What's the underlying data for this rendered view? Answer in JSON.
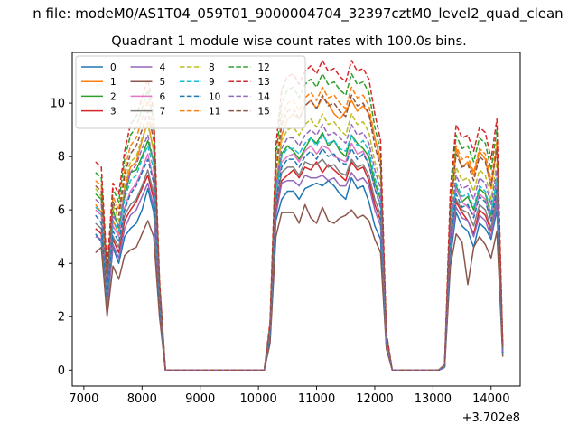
{
  "figure": {
    "suptitle": "n file: modeM0/AS1T04_059T01_9000004704_32397cztM0_level2_quad_clean",
    "title": "Quadrant 1 module wise count rates with 100.0s bins."
  },
  "chart_data": {
    "type": "line",
    "title": "Quadrant 1 module wise count rates with 100.0s bins.",
    "x_offset_label": "+3.702e8",
    "xlim": [
      6800,
      14500
    ],
    "ylim": [
      -0.6,
      11.9
    ],
    "xticks": [
      7000,
      8000,
      9000,
      10000,
      11000,
      12000,
      13000,
      14000
    ],
    "yticks": [
      0,
      2,
      4,
      6,
      8,
      10
    ],
    "grid": false,
    "legend": {
      "placement": "upper-left",
      "ncol": 4
    },
    "x": [
      7200,
      7300,
      7400,
      7500,
      7600,
      7700,
      7800,
      7900,
      8000,
      8100,
      8200,
      8300,
      8400,
      8500,
      8600,
      8700,
      8800,
      8900,
      9000,
      9100,
      9200,
      9300,
      9400,
      9500,
      9600,
      9700,
      9800,
      9900,
      10000,
      10100,
      10200,
      10300,
      10400,
      10500,
      10600,
      10700,
      10800,
      10900,
      11000,
      11100,
      11200,
      11300,
      11400,
      11500,
      11600,
      11700,
      11800,
      11900,
      12000,
      12100,
      12200,
      12300,
      12400,
      12500,
      12600,
      12700,
      12800,
      12900,
      13000,
      13100,
      13200,
      13300,
      13400,
      13500,
      13600,
      13700,
      13800,
      13900,
      14000,
      14100,
      14200
    ],
    "series": [
      {
        "name": "0",
        "color": "#1f77b4",
        "dash": false,
        "values": [
          5.1,
          4.8,
          2.4,
          4.6,
          4.0,
          5.0,
          5.3,
          5.5,
          6.0,
          6.8,
          5.9,
          2.4,
          0,
          0,
          0,
          0,
          0,
          0,
          0,
          0,
          0,
          0,
          0,
          0,
          0,
          0,
          0,
          0,
          0,
          0,
          1.2,
          5.6,
          6.4,
          6.7,
          6.7,
          6.4,
          6.8,
          6.9,
          7.0,
          6.9,
          7.1,
          6.9,
          6.6,
          6.4,
          7.2,
          6.8,
          6.9,
          6.3,
          5.4,
          4.9,
          0.9,
          0,
          0,
          0,
          0,
          0,
          0,
          0,
          0,
          0,
          0.1,
          4.2,
          5.9,
          5.4,
          5.2,
          4.6,
          5.5,
          5.3,
          4.9,
          6.0,
          0.6
        ]
      },
      {
        "name": "1",
        "color": "#ff7f0e",
        "dash": false,
        "values": [
          6.2,
          5.9,
          3.0,
          5.6,
          5.1,
          6.8,
          7.6,
          7.8,
          8.6,
          9.3,
          8.2,
          2.9,
          0,
          0,
          0,
          0,
          0,
          0,
          0,
          0,
          0,
          0,
          0,
          0,
          0,
          0,
          0,
          0,
          0,
          0,
          1.5,
          6.8,
          8.8,
          9.4,
          9.6,
          9.4,
          9.9,
          10.1,
          9.8,
          10.2,
          10.0,
          9.6,
          9.4,
          9.7,
          10.1,
          9.7,
          9.9,
          9.6,
          8.7,
          7.9,
          1.2,
          0,
          0,
          0,
          0,
          0,
          0,
          0,
          0,
          0,
          0.2,
          5.8,
          8.3,
          7.6,
          7.8,
          7.3,
          8.2,
          7.9,
          6.8,
          8.4,
          0.8
        ]
      },
      {
        "name": "2",
        "color": "#2ca02c",
        "dash": false,
        "values": [
          6.6,
          6.4,
          3.1,
          6.0,
          5.3,
          6.5,
          7.4,
          7.5,
          8.0,
          8.6,
          7.8,
          2.8,
          0,
          0,
          0,
          0,
          0,
          0,
          0,
          0,
          0,
          0,
          0,
          0,
          0,
          0,
          0,
          0,
          0,
          0,
          1.4,
          6.7,
          8.1,
          8.4,
          8.2,
          7.9,
          8.3,
          8.7,
          8.5,
          8.9,
          8.4,
          8.6,
          8.2,
          8.0,
          8.8,
          8.5,
          8.3,
          8.0,
          7.0,
          6.4,
          1.1,
          0,
          0,
          0,
          0,
          0,
          0,
          0,
          0,
          0,
          0.2,
          5.2,
          6.9,
          6.3,
          6.5,
          6.0,
          6.8,
          6.6,
          5.8,
          7.1,
          0.7
        ]
      },
      {
        "name": "3",
        "color": "#d62728",
        "dash": false,
        "values": [
          5.3,
          5.1,
          2.5,
          4.9,
          4.4,
          5.6,
          6.0,
          6.3,
          6.8,
          7.3,
          6.4,
          2.5,
          0,
          0,
          0,
          0,
          0,
          0,
          0,
          0,
          0,
          0,
          0,
          0,
          0,
          0,
          0,
          0,
          0,
          0,
          1.3,
          6.0,
          7.1,
          7.3,
          7.5,
          7.2,
          7.6,
          7.5,
          7.8,
          7.4,
          7.7,
          7.5,
          7.3,
          7.1,
          7.8,
          7.5,
          7.6,
          7.1,
          6.2,
          5.6,
          1.0,
          0,
          0,
          0,
          0,
          0,
          0,
          0,
          0,
          0,
          0.1,
          4.6,
          6.3,
          5.9,
          5.6,
          5.1,
          6.0,
          5.8,
          5.2,
          6.5,
          0.6
        ]
      },
      {
        "name": "4",
        "color": "#9467bd",
        "dash": false,
        "values": [
          5.0,
          4.9,
          2.2,
          4.7,
          4.2,
          5.3,
          5.8,
          6.0,
          6.5,
          7.0,
          6.1,
          2.4,
          0,
          0,
          0,
          0,
          0,
          0,
          0,
          0,
          0,
          0,
          0,
          0,
          0,
          0,
          0,
          0,
          0,
          0,
          1.2,
          5.8,
          7.0,
          7.1,
          7.1,
          6.9,
          7.3,
          7.2,
          7.2,
          7.3,
          7.1,
          7.2,
          6.9,
          6.9,
          7.4,
          7.1,
          7.2,
          6.9,
          6.0,
          5.4,
          1.0,
          0,
          0,
          0,
          0,
          0,
          0,
          0,
          0,
          0,
          0.1,
          4.5,
          6.1,
          5.7,
          5.6,
          5.0,
          5.8,
          5.6,
          5.0,
          6.3,
          0.6
        ]
      },
      {
        "name": "5",
        "color": "#8c564b",
        "dash": false,
        "values": [
          4.4,
          4.6,
          2.0,
          3.9,
          3.4,
          4.3,
          4.5,
          4.6,
          5.1,
          5.6,
          5.0,
          2.0,
          0,
          0,
          0,
          0,
          0,
          0,
          0,
          0,
          0,
          0,
          0,
          0,
          0,
          0,
          0,
          0,
          0,
          0,
          1.0,
          5.0,
          5.9,
          5.9,
          5.9,
          5.5,
          6.2,
          5.7,
          5.5,
          6.1,
          5.6,
          5.5,
          5.7,
          5.8,
          6.0,
          5.7,
          5.8,
          5.6,
          4.9,
          4.4,
          0.8,
          0,
          0,
          0,
          0,
          0,
          0,
          0,
          0,
          0,
          0.1,
          3.9,
          5.1,
          4.8,
          3.2,
          4.6,
          5.0,
          4.7,
          4.2,
          5.2,
          0.5
        ]
      },
      {
        "name": "6",
        "color": "#e377c2",
        "dash": false,
        "values": [
          6.0,
          5.8,
          2.9,
          5.4,
          5.0,
          6.1,
          6.7,
          7.0,
          7.5,
          8.1,
          7.1,
          2.7,
          0,
          0,
          0,
          0,
          0,
          0,
          0,
          0,
          0,
          0,
          0,
          0,
          0,
          0,
          0,
          0,
          0,
          0,
          1.4,
          6.5,
          7.8,
          8.0,
          8.1,
          7.8,
          8.2,
          8.4,
          8.1,
          8.4,
          8.3,
          8.0,
          7.9,
          7.8,
          8.5,
          8.1,
          8.2,
          7.7,
          6.8,
          6.2,
          1.1,
          0,
          0,
          0,
          0,
          0,
          0,
          0,
          0,
          0,
          0.2,
          5.0,
          6.8,
          6.3,
          6.1,
          5.8,
          6.6,
          6.4,
          5.6,
          6.9,
          0.7
        ]
      },
      {
        "name": "7",
        "color": "#7f7f7f",
        "dash": false,
        "values": [
          5.5,
          5.3,
          2.6,
          5.0,
          4.6,
          5.8,
          6.2,
          6.4,
          6.9,
          7.5,
          6.6,
          2.6,
          0,
          0,
          0,
          0,
          0,
          0,
          0,
          0,
          0,
          0,
          0,
          0,
          0,
          0,
          0,
          0,
          0,
          0,
          1.3,
          6.2,
          7.4,
          7.6,
          7.6,
          7.3,
          7.8,
          7.7,
          7.7,
          7.9,
          7.6,
          7.7,
          7.4,
          7.3,
          7.9,
          7.6,
          7.7,
          7.3,
          6.4,
          5.8,
          1.0,
          0,
          0,
          0,
          0,
          0,
          0,
          0,
          0,
          0,
          0.1,
          4.8,
          6.4,
          6.0,
          5.9,
          5.4,
          6.2,
          6.0,
          5.3,
          6.6,
          0.6
        ]
      },
      {
        "name": "8",
        "color": "#bcbd22",
        "dash": true,
        "values": [
          6.8,
          6.5,
          3.2,
          6.2,
          5.6,
          7.0,
          7.8,
          8.0,
          8.7,
          9.2,
          8.2,
          3.0,
          0,
          0,
          0,
          0,
          0,
          0,
          0,
          0,
          0,
          0,
          0,
          0,
          0,
          0,
          0,
          0,
          0,
          0,
          1.5,
          7.1,
          8.6,
          9.0,
          9.1,
          8.8,
          9.2,
          9.4,
          9.1,
          9.6,
          9.2,
          9.3,
          9.0,
          8.8,
          9.6,
          9.2,
          9.3,
          8.9,
          7.8,
          7.1,
          1.2,
          0,
          0,
          0,
          0,
          0,
          0,
          0,
          0,
          0,
          0.2,
          5.6,
          7.6,
          7.1,
          7.2,
          6.7,
          7.5,
          7.3,
          6.4,
          7.8,
          0.8
        ]
      },
      {
        "name": "9",
        "color": "#17becf",
        "dash": true,
        "values": [
          6.1,
          5.9,
          2.9,
          5.6,
          5.2,
          6.4,
          7.1,
          7.3,
          7.9,
          8.4,
          7.5,
          2.8,
          0,
          0,
          0,
          0,
          0,
          0,
          0,
          0,
          0,
          0,
          0,
          0,
          0,
          0,
          0,
          0,
          0,
          0,
          1.4,
          6.6,
          8.0,
          8.3,
          8.3,
          8.1,
          8.5,
          8.7,
          8.4,
          8.8,
          8.5,
          8.6,
          8.3,
          8.2,
          8.8,
          8.4,
          8.6,
          8.2,
          7.2,
          6.5,
          1.1,
          0,
          0,
          0,
          0,
          0,
          0,
          0,
          0,
          0,
          0.2,
          5.2,
          7.0,
          6.5,
          6.6,
          6.1,
          6.9,
          6.7,
          5.9,
          7.2,
          0.7
        ]
      },
      {
        "name": "10",
        "color": "#1f77b4",
        "dash": true,
        "values": [
          5.8,
          5.5,
          2.7,
          5.2,
          4.8,
          6.0,
          6.6,
          6.9,
          7.4,
          7.9,
          7.0,
          2.6,
          0,
          0,
          0,
          0,
          0,
          0,
          0,
          0,
          0,
          0,
          0,
          0,
          0,
          0,
          0,
          0,
          0,
          0,
          1.3,
          6.3,
          7.6,
          7.9,
          7.9,
          7.6,
          8.0,
          8.2,
          7.9,
          8.3,
          8.0,
          8.1,
          7.8,
          7.7,
          8.3,
          7.9,
          8.1,
          7.7,
          6.8,
          6.1,
          1.0,
          0,
          0,
          0,
          0,
          0,
          0,
          0,
          0,
          0,
          0.1,
          4.9,
          6.6,
          6.1,
          6.2,
          5.7,
          6.5,
          6.3,
          5.6,
          6.8,
          0.6
        ]
      },
      {
        "name": "11",
        "color": "#ff7f0e",
        "dash": true,
        "values": [
          7.1,
          6.9,
          3.4,
          6.5,
          6.0,
          7.5,
          8.4,
          8.7,
          9.4,
          10.1,
          8.9,
          3.2,
          0,
          0,
          0,
          0,
          0,
          0,
          0,
          0,
          0,
          0,
          0,
          0,
          0,
          0,
          0,
          0,
          0,
          0,
          1.6,
          7.6,
          9.5,
          10.0,
          10.1,
          9.7,
          10.2,
          10.4,
          10.1,
          10.6,
          10.2,
          10.3,
          10.0,
          9.8,
          10.6,
          10.2,
          10.3,
          9.9,
          8.7,
          7.8,
          1.3,
          0,
          0,
          0,
          0,
          0,
          0,
          0,
          0,
          0,
          0.2,
          6.2,
          8.4,
          7.9,
          8.0,
          7.4,
          8.3,
          8.1,
          7.1,
          8.6,
          0.8
        ]
      },
      {
        "name": "12",
        "color": "#2ca02c",
        "dash": true,
        "values": [
          7.4,
          7.2,
          3.6,
          6.8,
          6.3,
          7.9,
          8.8,
          9.1,
          9.8,
          10.5,
          9.3,
          3.3,
          0,
          0,
          0,
          0,
          0,
          0,
          0,
          0,
          0,
          0,
          0,
          0,
          0,
          0,
          0,
          0,
          0,
          0,
          1.7,
          8.0,
          10.0,
          10.5,
          10.6,
          10.2,
          10.7,
          10.9,
          10.6,
          11.1,
          10.7,
          10.8,
          10.5,
          10.3,
          11.1,
          10.7,
          10.8,
          10.4,
          9.1,
          8.2,
          1.4,
          0,
          0,
          0,
          0,
          0,
          0,
          0,
          0,
          0,
          0.2,
          6.5,
          8.8,
          8.3,
          8.4,
          7.8,
          8.7,
          8.5,
          7.5,
          9.0,
          0.9
        ]
      },
      {
        "name": "13",
        "color": "#d62728",
        "dash": true,
        "values": [
          7.8,
          7.6,
          3.8,
          7.0,
          6.6,
          8.2,
          9.2,
          9.5,
          10.2,
          10.9,
          9.7,
          3.4,
          0,
          0,
          0,
          0,
          0,
          0,
          0,
          0,
          0,
          0,
          0,
          0,
          0,
          0,
          0,
          0,
          0,
          0,
          1.8,
          8.4,
          10.5,
          11.0,
          11.1,
          10.7,
          11.2,
          11.4,
          11.1,
          11.6,
          11.2,
          11.3,
          11.0,
          10.8,
          11.6,
          11.2,
          11.3,
          10.9,
          9.6,
          8.6,
          1.4,
          0,
          0,
          0,
          0,
          0,
          0,
          0,
          0,
          0,
          0.2,
          6.8,
          9.2,
          8.7,
          8.8,
          8.2,
          9.1,
          8.9,
          7.9,
          9.4,
          0.9
        ]
      },
      {
        "name": "14",
        "color": "#9467bd",
        "dash": true,
        "values": [
          6.4,
          6.2,
          3.1,
          5.8,
          5.4,
          6.7,
          7.4,
          7.7,
          8.3,
          8.8,
          7.8,
          2.9,
          0,
          0,
          0,
          0,
          0,
          0,
          0,
          0,
          0,
          0,
          0,
          0,
          0,
          0,
          0,
          0,
          0,
          0,
          1.5,
          6.9,
          8.3,
          8.7,
          8.7,
          8.4,
          8.8,
          9.0,
          8.8,
          9.2,
          8.8,
          8.9,
          8.7,
          8.5,
          9.2,
          8.8,
          8.9,
          8.5,
          7.5,
          6.8,
          1.1,
          0,
          0,
          0,
          0,
          0,
          0,
          0,
          0,
          0,
          0.2,
          5.4,
          7.3,
          6.8,
          6.9,
          6.4,
          7.2,
          7.0,
          6.2,
          7.5,
          0.7
        ]
      },
      {
        "name": "15",
        "color": "#8c564b",
        "dash": true,
        "values": [
          6.9,
          6.7,
          3.3,
          6.3,
          5.8,
          7.3,
          8.1,
          8.4,
          9.0,
          9.7,
          8.6,
          3.1,
          0,
          0,
          0,
          0,
          0,
          0,
          0,
          0,
          0,
          0,
          0,
          0,
          0,
          0,
          0,
          0,
          0,
          0,
          1.6,
          7.4,
          9.2,
          9.7,
          9.8,
          9.4,
          9.9,
          10.1,
          9.8,
          10.3,
          9.9,
          10.0,
          9.7,
          9.5,
          10.3,
          9.9,
          10.0,
          9.6,
          8.4,
          7.6,
          1.3,
          0,
          0,
          0,
          0,
          0,
          0,
          0,
          0,
          0,
          0.2,
          6.0,
          8.1,
          7.6,
          7.7,
          7.1,
          8.0,
          7.8,
          6.9,
          8.3,
          0.8
        ]
      }
    ]
  }
}
